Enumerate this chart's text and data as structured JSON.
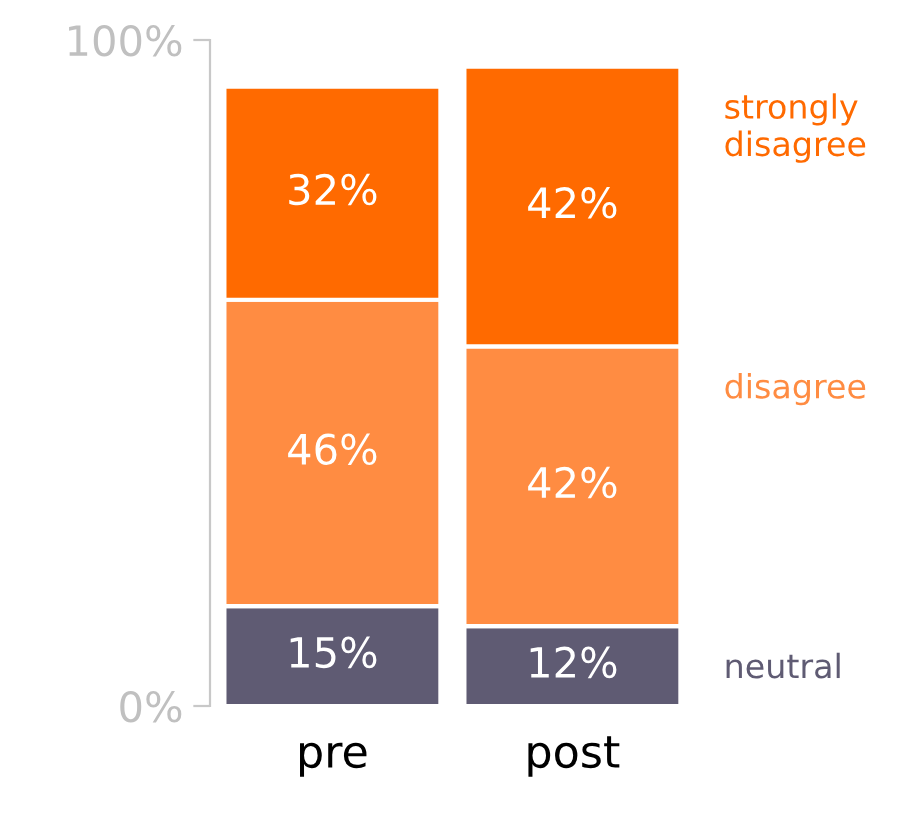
{
  "chart_data": {
    "type": "bar",
    "stacked": true,
    "categories": [
      "pre",
      "post"
    ],
    "series": [
      {
        "name": "neutral",
        "color": "#5f5b73",
        "values": [
          15,
          12
        ],
        "value_labels": [
          "15%",
          "12%"
        ]
      },
      {
        "name": "disagree",
        "color": "#ff8c42",
        "values": [
          46,
          42
        ],
        "value_labels": [
          "46%",
          "42%"
        ]
      },
      {
        "name": "strongly disagree",
        "color": "#ff6a00",
        "values": [
          32,
          42
        ],
        "value_labels": [
          "32%",
          "42%"
        ]
      }
    ],
    "ylim": [
      0,
      100
    ],
    "yticks": [
      {
        "value": 0,
        "label": "0%"
      },
      {
        "value": 100,
        "label": "100%"
      }
    ],
    "grid": false,
    "legend": false
  }
}
